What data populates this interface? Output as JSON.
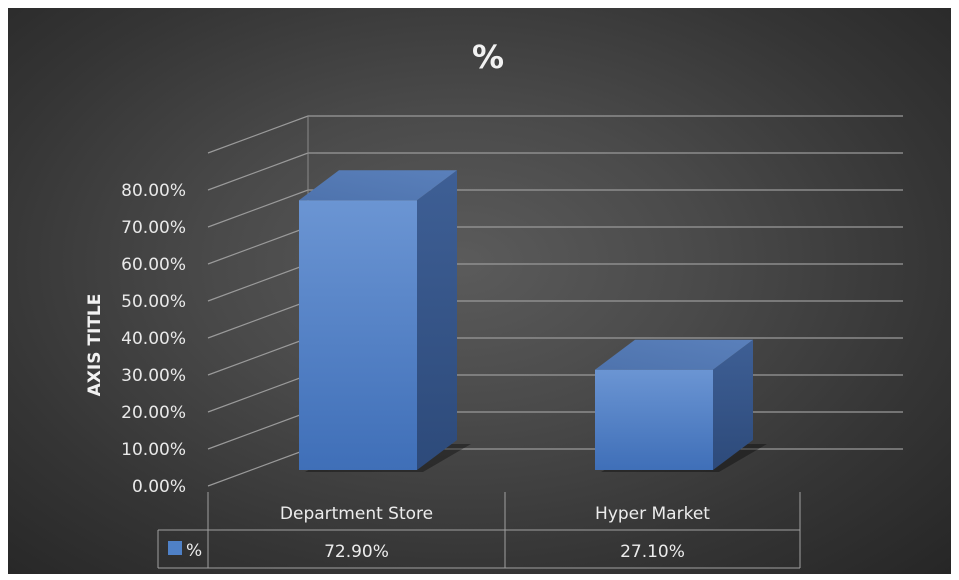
{
  "chart_data": {
    "type": "bar",
    "title": "%",
    "xlabel": "",
    "ylabel": "AXIS TITLE",
    "categories": [
      "Department Store",
      "Hyper Market"
    ],
    "series": [
      {
        "name": "%",
        "values": [
          72.9,
          27.1
        ],
        "labels": [
          "72.90%",
          "27.10%"
        ],
        "color": "#4f81c7"
      }
    ],
    "ylim": [
      0,
      80
    ],
    "yticks": [
      "0.00%",
      "10.00%",
      "20.00%",
      "30.00%",
      "40.00%",
      "50.00%",
      "60.00%",
      "70.00%",
      "80.00%"
    ],
    "grid": true,
    "three_d": true,
    "data_table": true,
    "legend": "data-table"
  }
}
